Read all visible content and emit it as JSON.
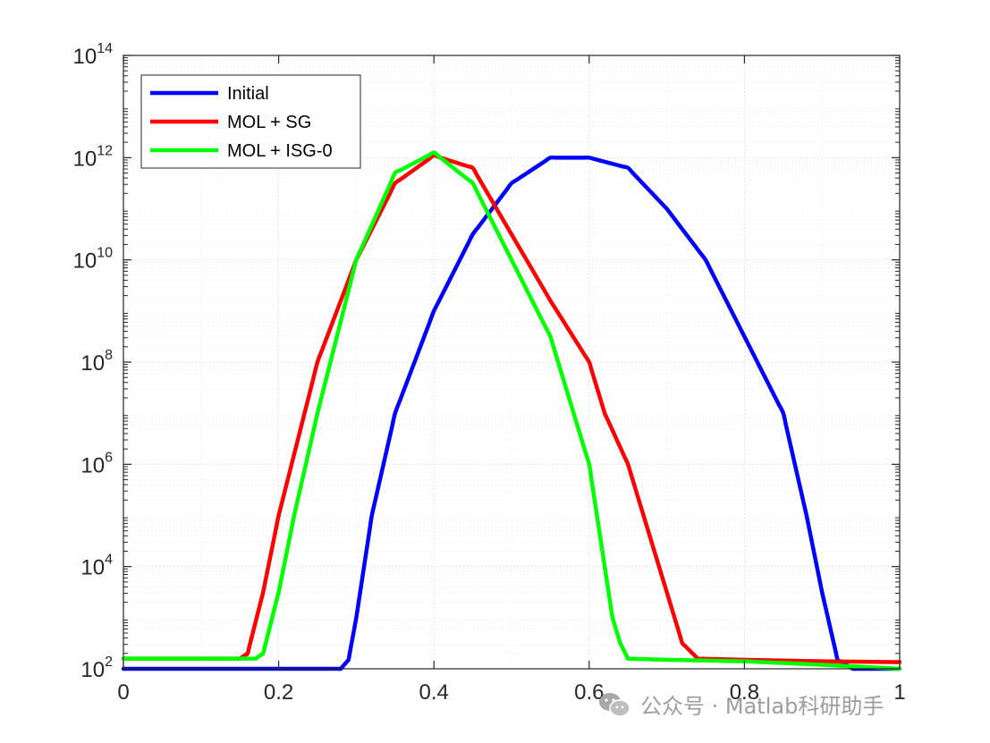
{
  "chart_data": {
    "type": "line",
    "title": "",
    "xlabel": "",
    "ylabel": "",
    "xlim": [
      0,
      1
    ],
    "ylim_log10": [
      2,
      14
    ],
    "yscale": "log",
    "grid": true,
    "minor_grid": true,
    "legend_location": "top-left",
    "x_ticks": [
      "0",
      "0.2",
      "0.4",
      "0.6",
      "0.8",
      "1"
    ],
    "y_ticks": [
      {
        "base": "10",
        "exp": "2"
      },
      {
        "base": "10",
        "exp": "4"
      },
      {
        "base": "10",
        "exp": "6"
      },
      {
        "base": "10",
        "exp": "8"
      },
      {
        "base": "10",
        "exp": "10"
      },
      {
        "base": "10",
        "exp": "12"
      },
      {
        "base": "10",
        "exp": "14"
      }
    ],
    "series": [
      {
        "name": "Initial",
        "color": "#0000ff",
        "points": [
          [
            0,
            100
          ],
          [
            0.1,
            100
          ],
          [
            0.2,
            100
          ],
          [
            0.25,
            100
          ],
          [
            0.28,
            100
          ],
          [
            0.29,
            150
          ],
          [
            0.3,
            1000
          ],
          [
            0.32,
            100000
          ],
          [
            0.35,
            10000000
          ],
          [
            0.4,
            1000000000
          ],
          [
            0.45,
            31600000000
          ],
          [
            0.5,
            316000000000
          ],
          [
            0.55,
            1000000000000
          ],
          [
            0.6,
            1000000000000
          ],
          [
            0.65,
            631000000000
          ],
          [
            0.7,
            100000000000
          ],
          [
            0.75,
            10000000000
          ],
          [
            0.8,
            316000000
          ],
          [
            0.85,
            10000000
          ],
          [
            0.88,
            100000
          ],
          [
            0.9,
            3160
          ],
          [
            0.92,
            150
          ],
          [
            0.94,
            100
          ],
          [
            1,
            100
          ]
        ]
      },
      {
        "name": "MOL + SG",
        "color": "#ff0000",
        "points": [
          [
            0,
            158
          ],
          [
            0.1,
            158
          ],
          [
            0.15,
            158
          ],
          [
            0.16,
            200
          ],
          [
            0.18,
            3160
          ],
          [
            0.2,
            100000
          ],
          [
            0.25,
            100000000
          ],
          [
            0.3,
            10000000000
          ],
          [
            0.35,
            316000000000
          ],
          [
            0.4,
            1100000000000
          ],
          [
            0.45,
            631000000000
          ],
          [
            0.5,
            31600000000
          ],
          [
            0.55,
            1600000000
          ],
          [
            0.6,
            100000000
          ],
          [
            0.62,
            10000000
          ],
          [
            0.65,
            1000000
          ],
          [
            0.68,
            31600
          ],
          [
            0.7,
            3160
          ],
          [
            0.72,
            316
          ],
          [
            0.74,
            158
          ],
          [
            0.8,
            150
          ],
          [
            0.9,
            140
          ],
          [
            1,
            135
          ]
        ]
      },
      {
        "name": "MOL + ISG-0",
        "color": "#00ff00",
        "points": [
          [
            0,
            158
          ],
          [
            0.1,
            158
          ],
          [
            0.17,
            158
          ],
          [
            0.18,
            200
          ],
          [
            0.2,
            3160
          ],
          [
            0.22,
            100000
          ],
          [
            0.25,
            10000000
          ],
          [
            0.3,
            10000000000
          ],
          [
            0.35,
            501000000000
          ],
          [
            0.4,
            1260000000000
          ],
          [
            0.45,
            316000000000
          ],
          [
            0.5,
            10000000000
          ],
          [
            0.55,
            316000000
          ],
          [
            0.6,
            1000000
          ],
          [
            0.62,
            10000
          ],
          [
            0.63,
            1000
          ],
          [
            0.64,
            316
          ],
          [
            0.65,
            158
          ],
          [
            0.7,
            150
          ],
          [
            0.8,
            140
          ],
          [
            0.9,
            120
          ],
          [
            1,
            100
          ]
        ]
      }
    ]
  },
  "watermark": {
    "text": "公众号 · Matlab科研助手",
    "icon": "wechat-icon"
  },
  "colors": {
    "axis": "#262626",
    "grid": "#e6e6e6",
    "minor_grid": "#f0f0f0"
  }
}
